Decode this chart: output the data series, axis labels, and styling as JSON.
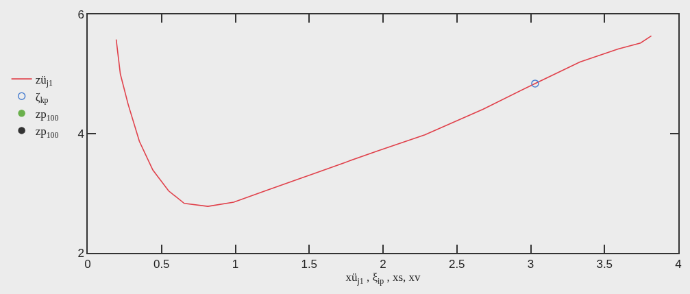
{
  "chart_data": {
    "type": "line",
    "xlabel": "xü$_{j1}$ , ξ$_{ip}$ , xs, xv",
    "xlim": [
      0,
      4
    ],
    "xticks": [
      0,
      0.5,
      1,
      1.5,
      2,
      2.5,
      3,
      3.5,
      4
    ],
    "ylim": [
      2,
      6
    ],
    "yticks": [
      2,
      4,
      6
    ],
    "grid": false,
    "legend": "left",
    "series": [
      {
        "name": "zü$_{j1}$",
        "marker": "none",
        "color": "#e0404a",
        "x": [
          0.193,
          0.221,
          0.274,
          0.35,
          0.441,
          0.548,
          0.654,
          0.814,
          0.989,
          1.202,
          1.431,
          1.735,
          1.963,
          2.283,
          2.679,
          3.029,
          3.333,
          3.592,
          3.744,
          3.817
        ],
        "values": [
          5.58,
          5.0,
          4.49,
          3.87,
          3.39,
          3.04,
          2.83,
          2.78,
          2.85,
          3.04,
          3.24,
          3.51,
          3.71,
          3.98,
          4.41,
          4.84,
          5.2,
          5.42,
          5.52,
          5.64
        ]
      },
      {
        "name": "ζ$_{kp}$",
        "type": "scatter",
        "marker": "circle",
        "color": "#4a7fd0",
        "x": [
          3.03
        ],
        "values": [
          4.84
        ]
      },
      {
        "name": "zp$_{100}$",
        "type": "scatter",
        "marker": "circle",
        "color": "#6ab04c"
      },
      {
        "name": "zp$_{100}$",
        "type": "scatter",
        "marker": "circle",
        "color": "#333333"
      }
    ]
  }
}
